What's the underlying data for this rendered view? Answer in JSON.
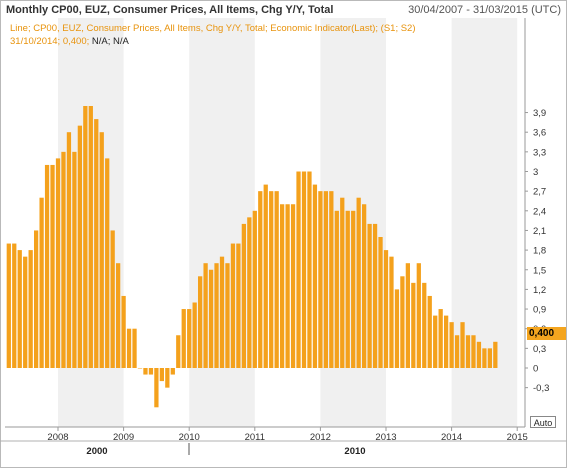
{
  "header": {
    "title": "Monthly CP00, EUZ, Consumer Prices, All Items, Chg Y/Y, Total",
    "date_range": "30/04/2007 - 31/03/2015 (UTC)"
  },
  "legend": {
    "line": "Line; CP00, EUZ, Consumer Prices, All Items, Chg Y/Y, Total; Economic Indicator(Last); (S1; S2)",
    "readout_prefix": "31/10/2014; 0,400;",
    "readout_na": "N/A; N/A"
  },
  "value_tag": "0,400",
  "auto_button": "Auto",
  "colors": {
    "bar": "#f4a11c",
    "shade": "#f0f0f0",
    "tag": "#f4a51f"
  },
  "chart_data": {
    "type": "bar",
    "x_start": "2007-04",
    "frequency": "monthly",
    "x_ticks": [
      "2008",
      "2009",
      "2010",
      "2011",
      "2012",
      "2013",
      "2014",
      "2015"
    ],
    "x_group_labels": [
      "2000",
      "2010"
    ],
    "y_ticks": [
      "3,9",
      "3,6",
      "3,3",
      "3",
      "2,7",
      "2,4",
      "2,1",
      "1,8",
      "1,5",
      "1,2",
      "0,9",
      "0,6",
      "0,3",
      "0",
      "-0,3"
    ],
    "ylim": [
      -0.5,
      4.0
    ],
    "grid": false,
    "values": [
      1.9,
      1.9,
      1.8,
      1.7,
      1.8,
      2.1,
      2.6,
      3.1,
      3.1,
      3.2,
      3.3,
      3.6,
      3.3,
      3.7,
      4.0,
      4.0,
      3.8,
      3.6,
      3.2,
      2.1,
      1.6,
      1.1,
      0.6,
      0.6,
      0.0,
      -0.1,
      -0.1,
      -0.6,
      -0.2,
      -0.3,
      -0.1,
      0.5,
      0.9,
      0.9,
      1.0,
      1.4,
      1.6,
      1.5,
      1.6,
      1.7,
      1.6,
      1.9,
      1.9,
      2.2,
      2.3,
      2.4,
      2.7,
      2.8,
      2.7,
      2.7,
      2.5,
      2.5,
      2.5,
      3.0,
      3.0,
      3.0,
      2.8,
      2.7,
      2.7,
      2.7,
      2.4,
      2.6,
      2.4,
      2.4,
      2.6,
      2.5,
      2.2,
      2.2,
      2.0,
      1.8,
      1.7,
      1.2,
      1.4,
      1.6,
      1.3,
      1.6,
      1.3,
      1.1,
      0.8,
      0.9,
      0.8,
      0.7,
      0.5,
      0.7,
      0.5,
      0.5,
      0.4,
      0.3,
      0.3,
      0.4
    ]
  }
}
